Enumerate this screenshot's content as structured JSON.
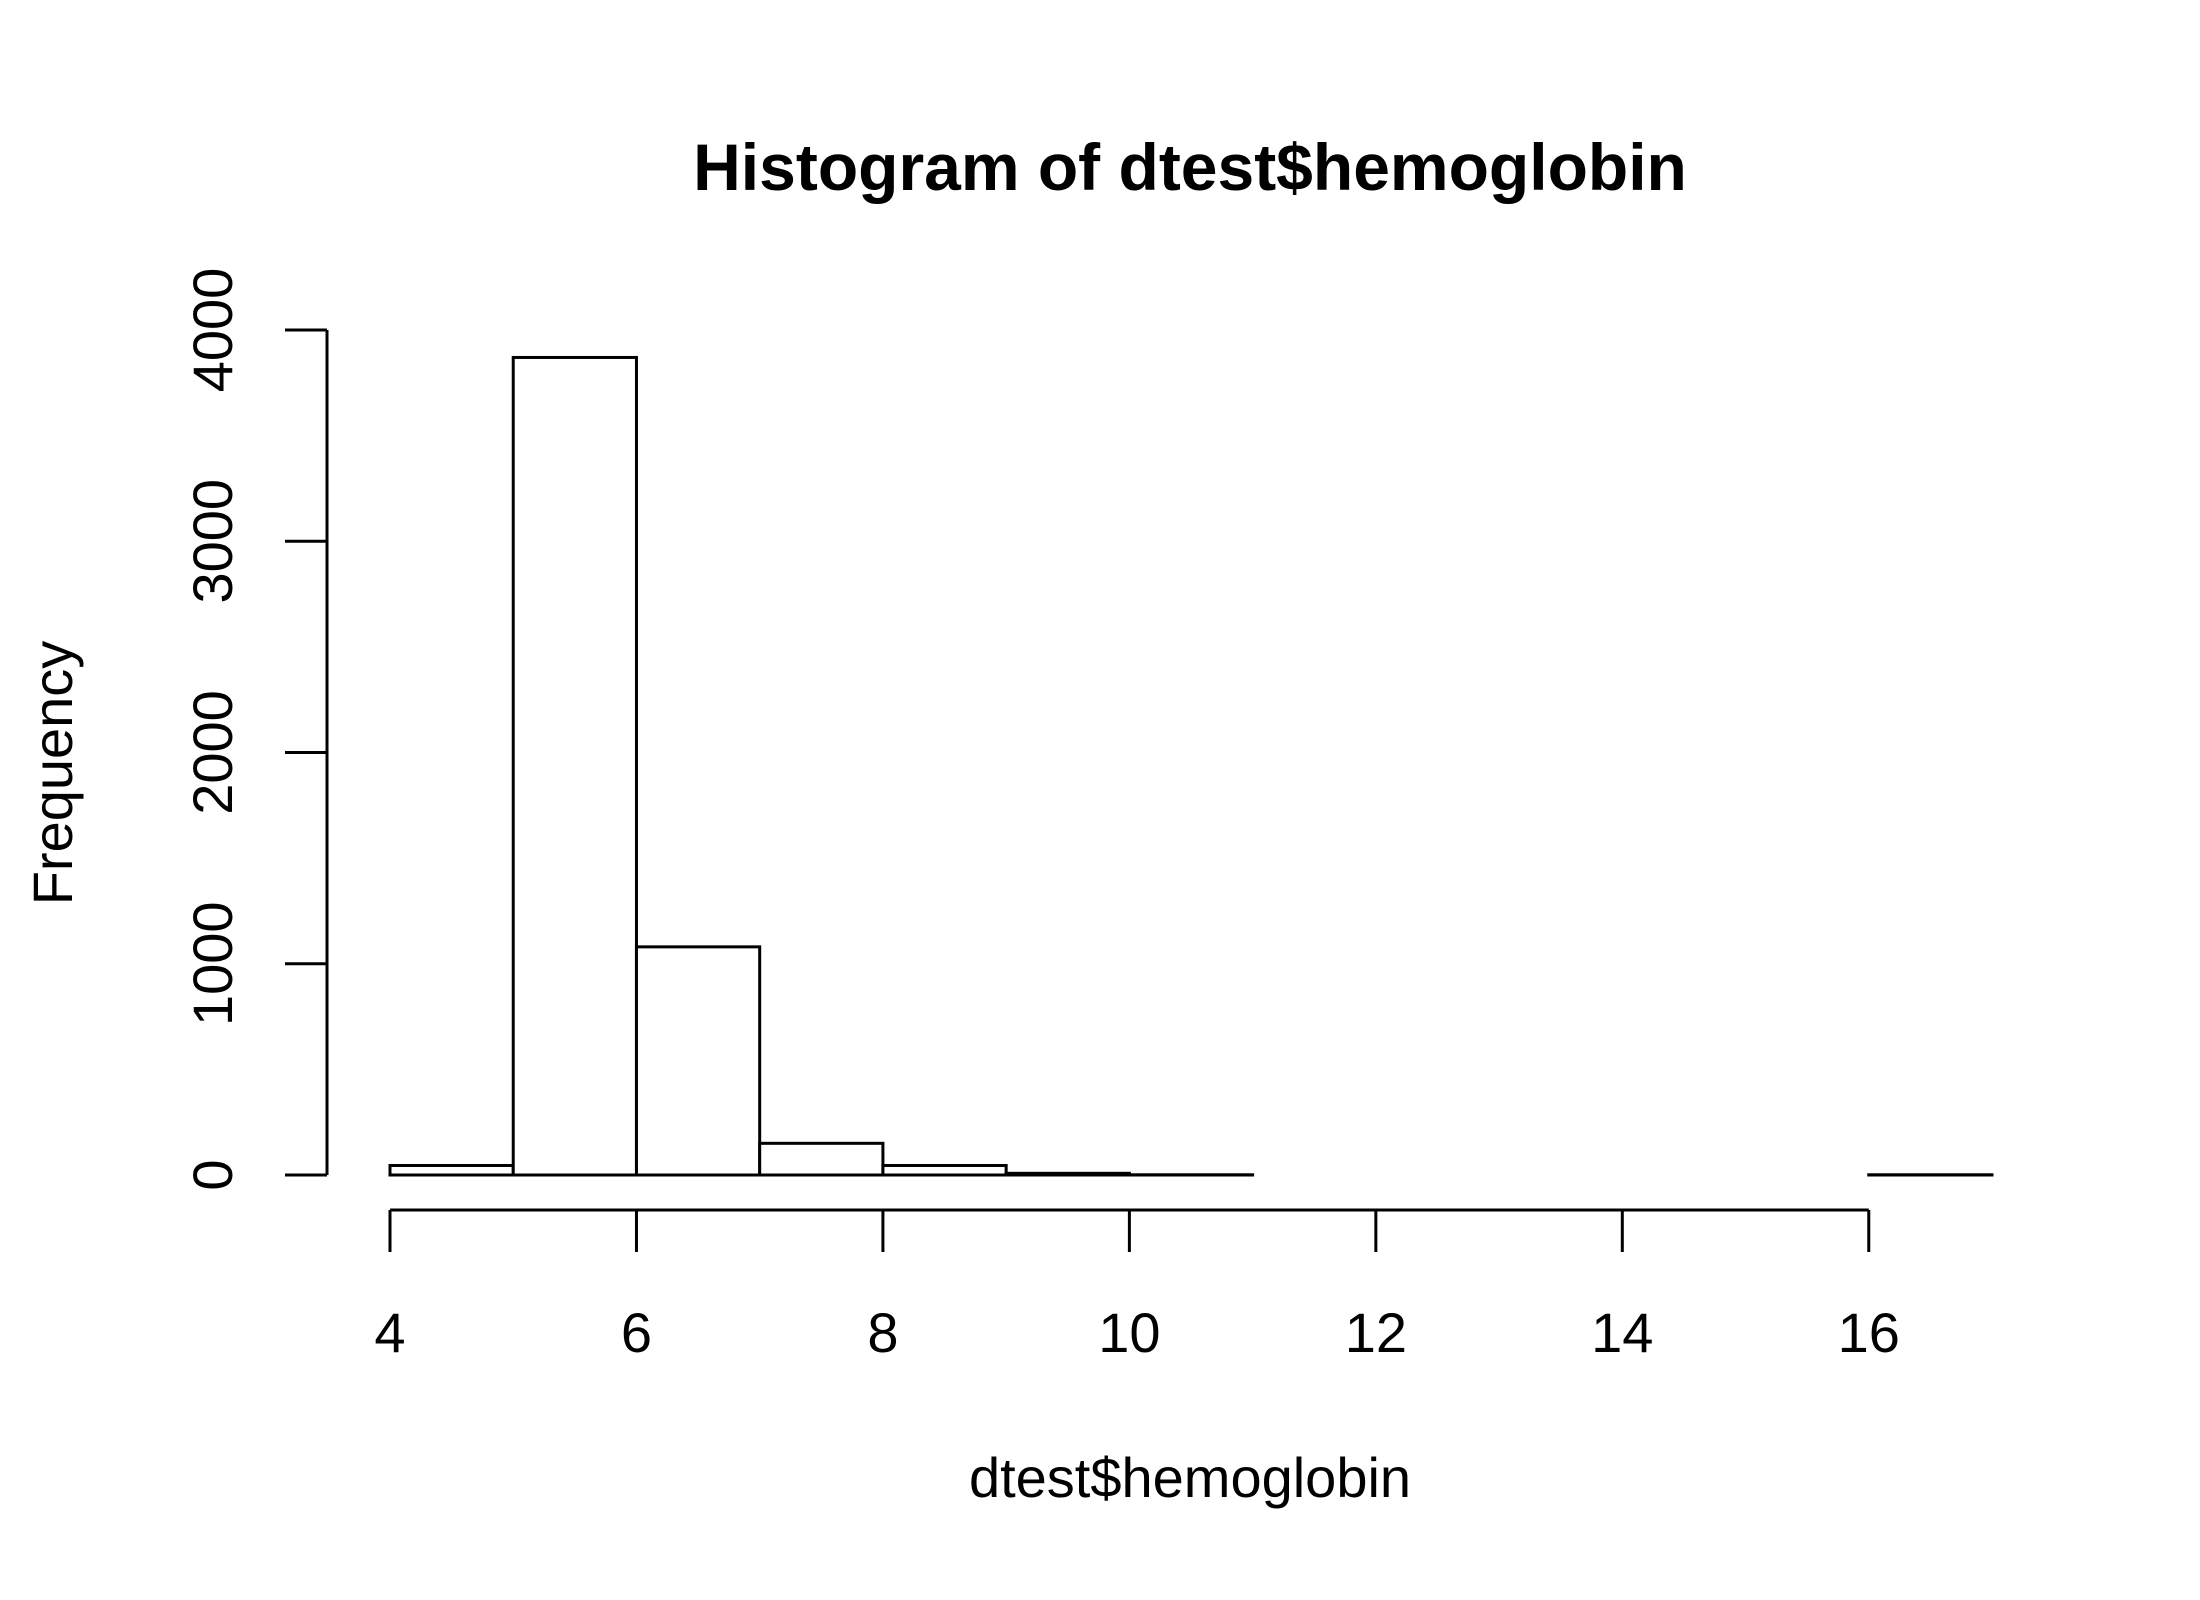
{
  "chart_data": {
    "type": "bar",
    "title": "Histogram of dtest$hemoglobin",
    "xlabel": "dtest$hemoglobin",
    "ylabel": "Frequency",
    "xlim": [
      4,
      17
    ],
    "ylim": [
      0,
      4000
    ],
    "x_ticks": [
      "4",
      "6",
      "8",
      "10",
      "12",
      "14",
      "16"
    ],
    "y_ticks": [
      "0",
      "1000",
      "2000",
      "3000",
      "4000"
    ],
    "bins": [
      {
        "start": 4,
        "end": 5,
        "value": 45
      },
      {
        "start": 5,
        "end": 6,
        "value": 3870
      },
      {
        "start": 6,
        "end": 7,
        "value": 1080
      },
      {
        "start": 7,
        "end": 8,
        "value": 150
      },
      {
        "start": 8,
        "end": 9,
        "value": 45
      },
      {
        "start": 9,
        "end": 10,
        "value": 8
      },
      {
        "start": 10,
        "end": 11,
        "value": 1
      },
      {
        "start": 11,
        "end": 12,
        "value": 0
      },
      {
        "start": 12,
        "end": 13,
        "value": 0
      },
      {
        "start": 13,
        "end": 14,
        "value": 0
      },
      {
        "start": 14,
        "end": 15,
        "value": 0
      },
      {
        "start": 15,
        "end": 16,
        "value": 0
      },
      {
        "start": 16,
        "end": 17,
        "value": 1
      }
    ],
    "grid": false,
    "legend": "none",
    "bar_fill": "#ffffff",
    "bar_stroke": "#000000"
  }
}
